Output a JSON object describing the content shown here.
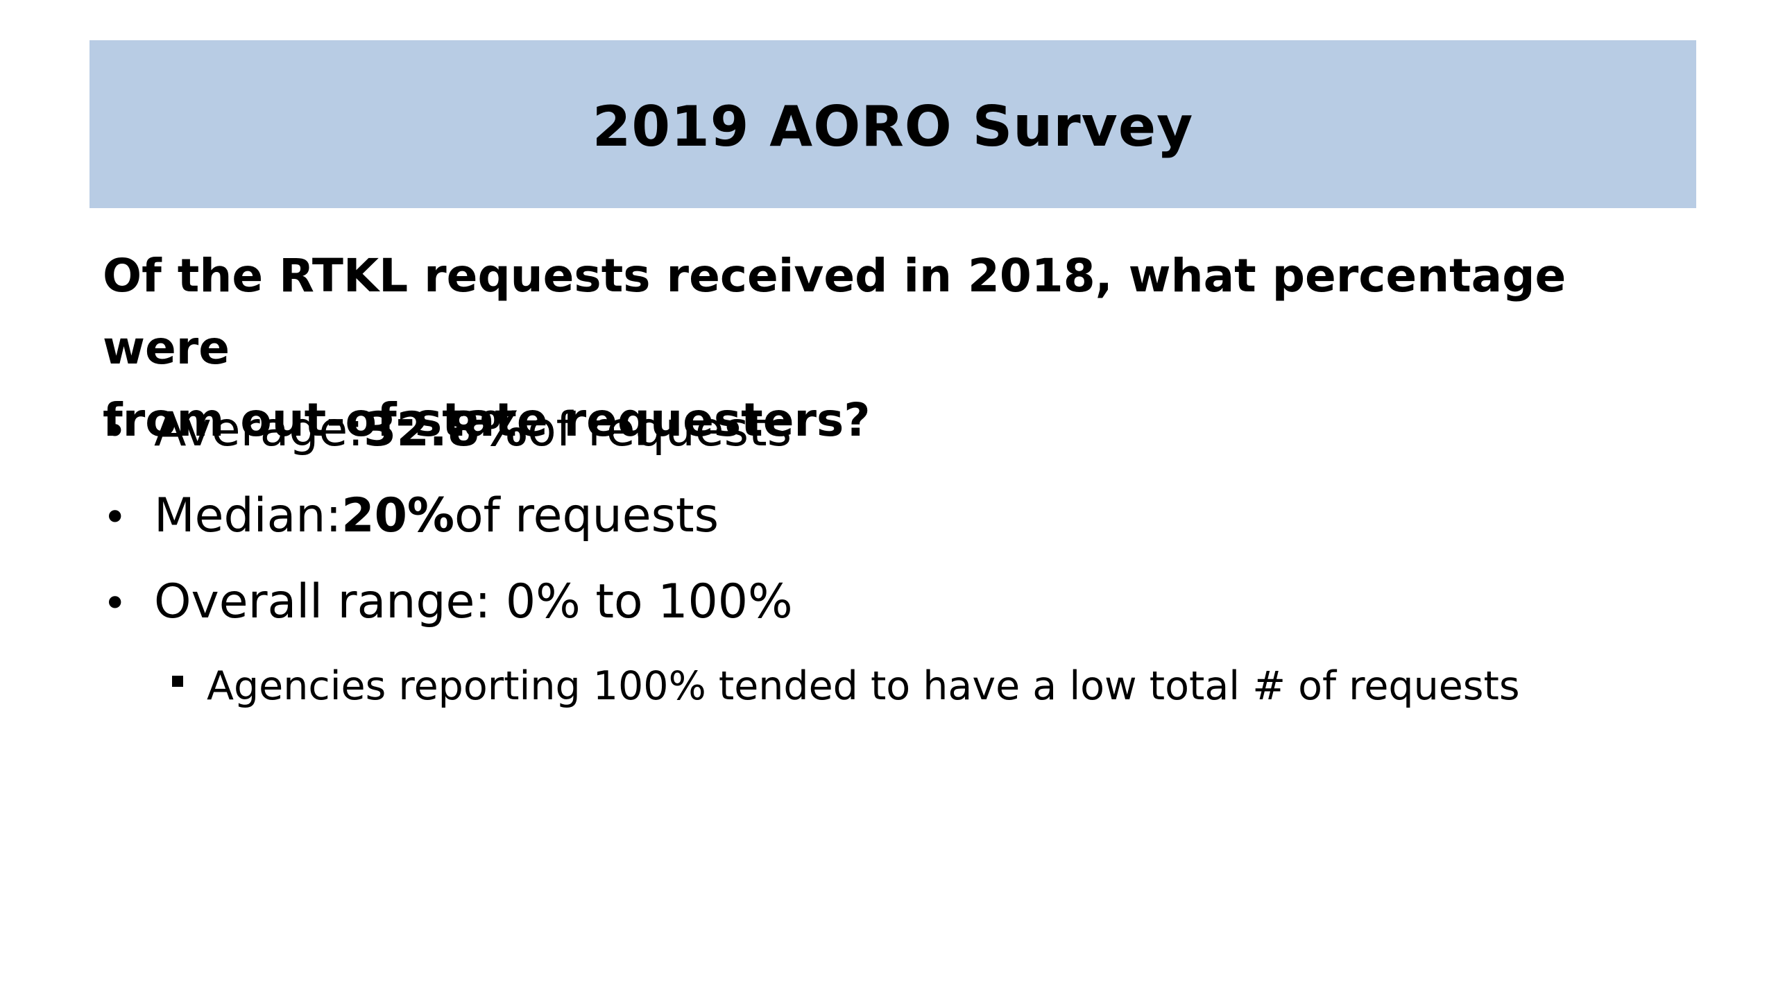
{
  "title": "2019 AORO Survey",
  "question": {
    "line1": "Of the RTKL requests received in 2018, what percentage were",
    "line2": "from out-of-state requesters?"
  },
  "bullets": [
    {
      "label": "Average: ",
      "value": "32.8%",
      "suffix": " of requests"
    },
    {
      "label": "Median: ",
      "value": "20%",
      "suffix": " of requests"
    },
    {
      "label": "Overall range: 0% to 100%"
    }
  ],
  "sub_bullet": "Agencies reporting 100% tended to have a low total # of requests",
  "colors": {
    "title_band": "#b8cce4",
    "text": "#000000"
  }
}
